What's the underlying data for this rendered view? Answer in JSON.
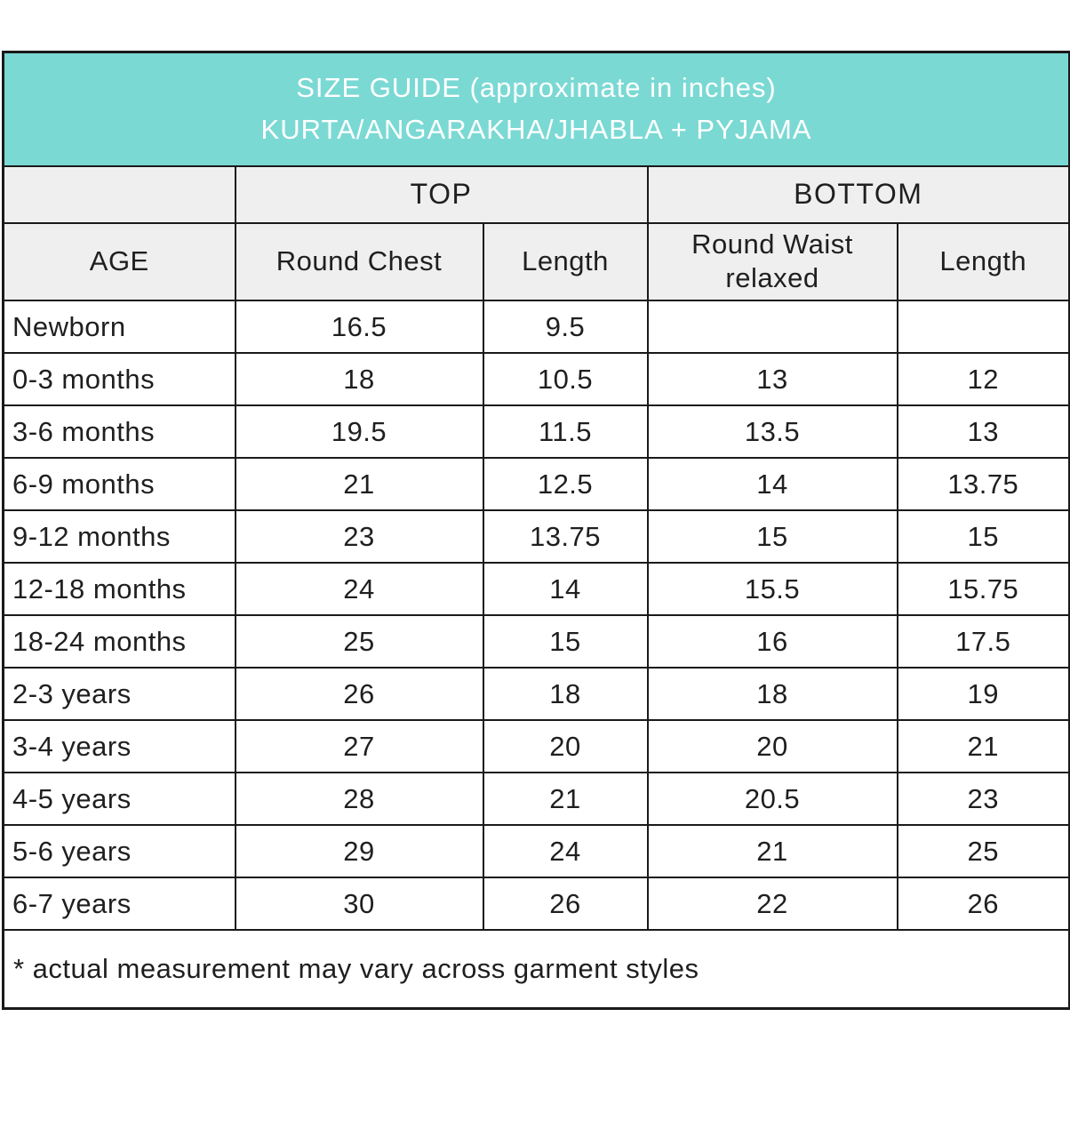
{
  "banner": {
    "line1": "SIZE GUIDE (approximate in inches)",
    "line2": "KURTA/ANGARAKHA/JHABLA + PYJAMA"
  },
  "table": {
    "group_headers": {
      "age_spacer": "",
      "top": "TOP",
      "bottom": "BOTTOM"
    },
    "columns": [
      "AGE",
      "Round Chest",
      "Length",
      "Round Waist relaxed",
      "Length"
    ],
    "rows": [
      {
        "age": "Newborn",
        "values": [
          "16.5",
          "9.5",
          "",
          ""
        ]
      },
      {
        "age": "0-3 months",
        "values": [
          "18",
          "10.5",
          "13",
          "12"
        ]
      },
      {
        "age": "3-6 months",
        "values": [
          "19.5",
          "11.5",
          "13.5",
          "13"
        ]
      },
      {
        "age": "6-9 months",
        "values": [
          "21",
          "12.5",
          "14",
          "13.75"
        ]
      },
      {
        "age": "9-12 months",
        "values": [
          "23",
          "13.75",
          "15",
          "15"
        ]
      },
      {
        "age": "12-18 months",
        "values": [
          "24",
          "14",
          "15.5",
          "15.75"
        ]
      },
      {
        "age": "18-24 months",
        "values": [
          "25",
          "15",
          "16",
          "17.5"
        ]
      },
      {
        "age": "2-3 years",
        "values": [
          "26",
          "18",
          "18",
          "19"
        ]
      },
      {
        "age": "3-4 years",
        "values": [
          "27",
          "20",
          "20",
          "21"
        ]
      },
      {
        "age": "4-5 years",
        "values": [
          "28",
          "21",
          "20.5",
          "23"
        ]
      },
      {
        "age": "5-6 years",
        "values": [
          "29",
          "24",
          "21",
          "25"
        ]
      },
      {
        "age": "6-7 years",
        "values": [
          "30",
          "26",
          "22",
          "26"
        ]
      }
    ],
    "footnote": "* actual measurement may vary across garment styles"
  },
  "colors": {
    "banner_bg": "#7bd9d4",
    "banner_text": "#ffffff",
    "header_bg": "#efefef",
    "border": "#1a1a1a",
    "text": "#1f1f1f"
  }
}
